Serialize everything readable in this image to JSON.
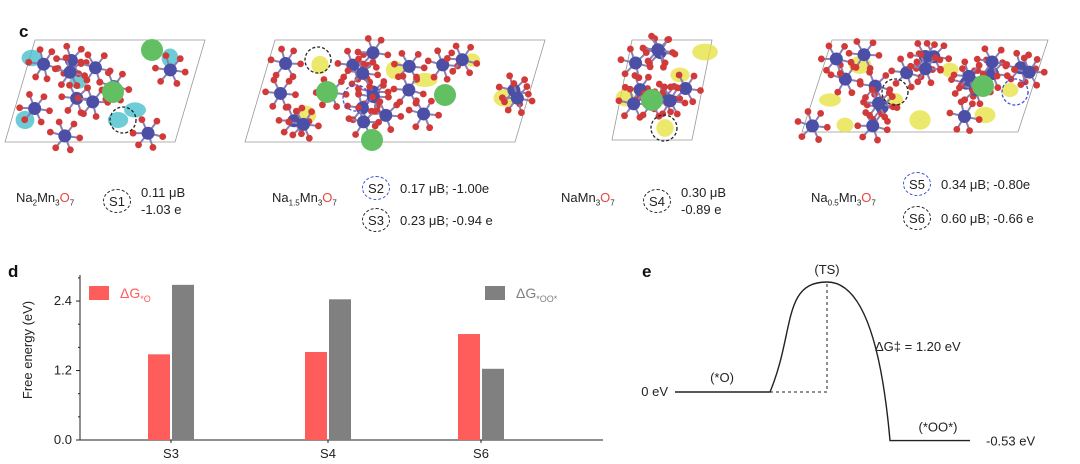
{
  "panels": {
    "c": "c",
    "d": "d",
    "e": "e"
  },
  "panel_c": {
    "structures": [
      {
        "formula_parts": [
          "Na",
          "2",
          "Mn",
          "3",
          "O",
          "7"
        ],
        "sites": [
          {
            "id": "S1",
            "ring": "black",
            "line1": "0.11 μB",
            "line2": "-1.03 e"
          }
        ]
      },
      {
        "formula_parts": [
          "Na",
          "1.5",
          "Mn",
          "3",
          "O",
          "7"
        ],
        "sites": [
          {
            "id": "S2",
            "ring": "blue",
            "line1": "0.17 μB; -1.00e"
          },
          {
            "id": "S3",
            "ring": "black",
            "line1": "0.23 μB; -0.94 e"
          }
        ]
      },
      {
        "formula_parts": [
          "Na",
          "",
          "Mn",
          "3",
          "O",
          "7"
        ],
        "sites": [
          {
            "id": "S4",
            "ring": "black",
            "line1": "0.30 μB",
            "line2": "-0.89 e"
          }
        ]
      },
      {
        "formula_parts": [
          "Na",
          "0.5",
          "Mn",
          "3",
          "O",
          "7"
        ],
        "sites": [
          {
            "id": "S5",
            "ring": "blue",
            "line1": "0.34 μB; -0.80e"
          },
          {
            "id": "S6",
            "ring": "black",
            "line1": "0.60 μB; -0.66 e"
          }
        ]
      }
    ],
    "colors": {
      "mn": "#4b4fa6",
      "o": "#d23a3a",
      "na": "#62bf62",
      "spin_up": "#e6e03a",
      "spin_down": "#3cbcc8"
    }
  },
  "chart_data": [
    {
      "type": "bar",
      "categories": [
        "S3",
        "S4",
        "S6"
      ],
      "series": [
        {
          "name": "ΔG*O",
          "values": [
            1.48,
            1.52,
            1.83
          ],
          "color": "#ff5c5c"
        },
        {
          "name": "ΔG*OO*",
          "values": [
            2.68,
            2.43,
            1.23
          ],
          "color": "#808080"
        }
      ],
      "ylabel": "Free energy (eV)",
      "yticks": [
        0.0,
        1.2,
        2.4
      ],
      "ytick_labels": [
        "0.0",
        "1.2",
        "2.4"
      ],
      "ylim": [
        0,
        2.85
      ],
      "legend": {
        "o_base": "ΔG",
        "o_sub": "*O",
        "oo_base": "ΔG",
        "oo_sub": "*OO*"
      }
    },
    {
      "type": "line",
      "ylim": [
        -0.53,
        1.2
      ],
      "levels": {
        "start": 0.0,
        "ts": 1.2,
        "end": -0.53
      },
      "labels": {
        "start": "0 eV",
        "initial": "(*O)",
        "ts": "(TS)",
        "barrier": "ΔG‡ = 1.20 eV",
        "final": "(*OO*)",
        "end": "-0.53 eV"
      }
    }
  ]
}
